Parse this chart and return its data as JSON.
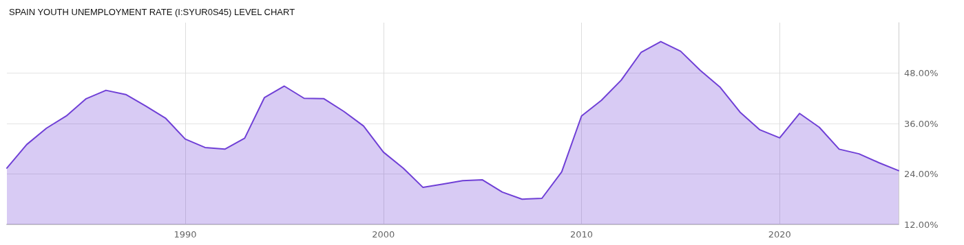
{
  "chart_data": {
    "type": "area",
    "title": "SPAIN YOUTH UNEMPLOYMENT RATE (I:SYUR0S45) LEVEL CHART",
    "x": [
      1981,
      1982,
      1983,
      1984,
      1985,
      1986,
      1987,
      1988,
      1989,
      1990,
      1991,
      1992,
      1993,
      1994,
      1995,
      1996,
      1997,
      1998,
      1999,
      2000,
      2001,
      2002,
      2003,
      2004,
      2005,
      2006,
      2007,
      2008,
      2009,
      2010,
      2011,
      2012,
      2013,
      2014,
      2015,
      2016,
      2017,
      2018,
      2019,
      2020,
      2021,
      2022,
      2023,
      2024,
      2025,
      2026
    ],
    "series": [
      {
        "color": "#6f3fd6",
        "values": [
          25.4,
          31.0,
          34.9,
          37.8,
          41.9,
          43.9,
          42.9,
          40.2,
          37.3,
          32.3,
          30.3,
          29.9,
          32.5,
          42.2,
          44.9,
          42.0,
          41.9,
          38.9,
          35.4,
          29.2,
          25.4,
          20.8,
          21.6,
          22.4,
          22.6,
          19.7,
          18.0,
          18.2,
          24.5,
          37.8,
          41.5,
          46.3,
          52.9,
          55.5,
          53.2,
          48.6,
          44.6,
          38.7,
          34.5,
          32.6,
          38.4,
          35.1,
          29.9,
          28.8,
          26.7,
          24.8
        ]
      }
    ],
    "xlim": [
      1981,
      2026
    ],
    "xticks": [
      1990,
      2000,
      2010,
      2020
    ],
    "ylim": [
      12,
      60
    ],
    "yticks": [
      {
        "value": 12,
        "label": "12.00%"
      },
      {
        "value": 24,
        "label": "24.00%"
      },
      {
        "value": 36,
        "label": "36.00%"
      },
      {
        "value": 48,
        "label": "48.00%"
      }
    ],
    "grid": true,
    "marker": "none",
    "line_style": "solid"
  }
}
